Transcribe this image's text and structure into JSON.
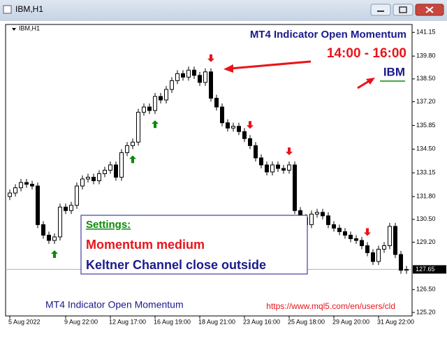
{
  "window": {
    "title": "IBM,H1"
  },
  "chart_data": {
    "type": "candlestick",
    "label": "IBM,H1",
    "categories": [
      "5 Aug 2022",
      null,
      null,
      null,
      null,
      null,
      null,
      null,
      null,
      null,
      "9 Aug 22:00",
      null,
      null,
      null,
      null,
      null,
      null,
      null,
      "12 Aug 17:00",
      null,
      null,
      null,
      null,
      null,
      null,
      null,
      "16 Aug 19:00",
      null,
      null,
      null,
      null,
      null,
      null,
      null,
      "18 Aug 21:00",
      null,
      null,
      null,
      null,
      null,
      null,
      null,
      "23 Aug 16:00",
      null,
      null,
      null,
      null,
      null,
      null,
      null,
      "25 Aug 18:00",
      null,
      null,
      null,
      null,
      null,
      null,
      null,
      "29 Aug 20:00",
      null,
      null,
      null,
      null,
      null,
      null,
      null,
      "31 Aug 22:00",
      null,
      null,
      null,
      null,
      null
    ],
    "open": [
      131.8,
      132.0,
      132.3,
      132.6,
      132.5,
      132.4,
      130.2,
      129.6,
      129.3,
      129.5,
      131.2,
      131.0,
      131.3,
      132.4,
      132.8,
      132.9,
      132.7,
      133.1,
      133.3,
      133.6,
      132.9,
      134.3,
      134.7,
      134.9,
      136.6,
      136.9,
      136.7,
      137.5,
      137.3,
      137.9,
      138.4,
      138.8,
      138.6,
      139.0,
      138.7,
      138.3,
      138.9,
      137.4,
      136.9,
      136.0,
      135.7,
      135.8,
      135.5,
      135.1,
      134.7,
      134.0,
      133.6,
      133.2,
      133.6,
      133.4,
      133.3,
      133.6,
      131.0,
      130.6,
      130.2,
      130.8,
      130.9,
      130.7,
      130.2,
      130.0,
      129.8,
      129.6,
      129.4,
      129.3,
      129.0,
      128.6,
      128.1,
      128.8,
      129.0,
      130.1,
      128.5,
      127.6
    ],
    "high": [
      132.2,
      132.5,
      132.8,
      132.8,
      132.7,
      132.6,
      130.4,
      129.8,
      129.7,
      131.4,
      131.4,
      131.5,
      132.6,
      133.0,
      133.1,
      133.1,
      133.3,
      133.5,
      133.8,
      133.8,
      134.5,
      134.9,
      135.1,
      136.8,
      137.1,
      137.1,
      137.7,
      137.7,
      138.1,
      138.6,
      139.0,
      139.0,
      139.2,
      139.2,
      138.9,
      139.1,
      139.1,
      137.6,
      137.1,
      136.2,
      136.0,
      136.0,
      135.7,
      135.3,
      134.9,
      134.2,
      133.8,
      133.8,
      133.8,
      133.6,
      133.8,
      133.8,
      131.2,
      130.8,
      131.0,
      131.1,
      131.1,
      130.9,
      130.4,
      130.2,
      130.0,
      129.8,
      129.6,
      129.5,
      129.2,
      128.8,
      129.0,
      129.2,
      130.3,
      130.3,
      128.7,
      127.85
    ],
    "low": [
      131.6,
      131.8,
      132.1,
      132.3,
      132.2,
      130.0,
      129.4,
      129.1,
      129.1,
      129.3,
      130.8,
      130.8,
      131.1,
      132.2,
      132.6,
      132.5,
      132.5,
      132.9,
      133.1,
      132.7,
      132.7,
      134.1,
      134.5,
      134.7,
      136.4,
      136.5,
      136.5,
      137.1,
      137.1,
      137.7,
      138.2,
      138.4,
      138.4,
      138.5,
      138.1,
      138.1,
      137.2,
      136.7,
      135.8,
      135.5,
      135.5,
      135.3,
      134.9,
      134.5,
      133.8,
      133.4,
      133.0,
      133.0,
      133.2,
      133.1,
      133.1,
      130.8,
      130.4,
      130.0,
      130.0,
      130.6,
      130.5,
      130.0,
      129.8,
      129.6,
      129.4,
      129.2,
      129.1,
      128.8,
      128.4,
      127.9,
      127.9,
      128.6,
      128.8,
      128.3,
      127.4,
      127.4
    ],
    "close": [
      132.0,
      132.3,
      132.6,
      132.5,
      132.4,
      130.2,
      129.6,
      129.3,
      129.5,
      131.2,
      131.0,
      131.3,
      132.4,
      132.8,
      132.9,
      132.7,
      133.1,
      133.3,
      133.6,
      132.9,
      134.3,
      134.7,
      134.9,
      136.6,
      136.9,
      136.7,
      137.5,
      137.3,
      137.9,
      138.4,
      138.8,
      138.6,
      139.0,
      138.7,
      138.3,
      138.9,
      137.4,
      136.9,
      136.0,
      135.7,
      135.8,
      135.5,
      135.1,
      134.7,
      134.0,
      133.6,
      133.2,
      133.6,
      133.4,
      133.3,
      133.6,
      131.0,
      130.6,
      130.2,
      130.8,
      130.9,
      130.7,
      130.2,
      130.0,
      129.8,
      129.6,
      129.4,
      129.3,
      129.0,
      128.6,
      128.1,
      128.8,
      129.0,
      130.1,
      128.5,
      127.6,
      127.65
    ],
    "buy_signals": [
      8,
      22,
      26
    ],
    "sell_signals": [
      36,
      43,
      50,
      64
    ],
    "current_price": 127.65,
    "ylim": [
      125.0,
      141.6
    ],
    "yticks": [
      141.15,
      {
        "value": 139.8,
        "label": "139.80"
      },
      {
        "value": 138.5,
        "label": "138.50"
      },
      {
        "value": 137.2,
        "label": "137.20"
      },
      135.85,
      {
        "value": 134.5,
        "label": "134.50"
      },
      133.15,
      {
        "value": 131.8,
        "label": "131.80"
      },
      {
        "value": 130.5,
        "label": "130.50"
      },
      {
        "value": 129.2,
        "label": "129.20"
      },
      {
        "value": 126.5,
        "label": "126.50"
      },
      {
        "value": 125.2,
        "label": "125.20"
      }
    ],
    "annotations": {
      "indicator_title": "MT4 Indicator  Open Momentum",
      "time_range": "14:00 - 16:00",
      "symbol": "IBM",
      "settings_heading": "Settings:",
      "setting_1": "Momentum medium",
      "setting_2": "Keltner Channel close outside",
      "footer_title": "MT4 Indicator  Open Momentum",
      "url": "https://www.mql5.com/en/users/cld"
    }
  }
}
